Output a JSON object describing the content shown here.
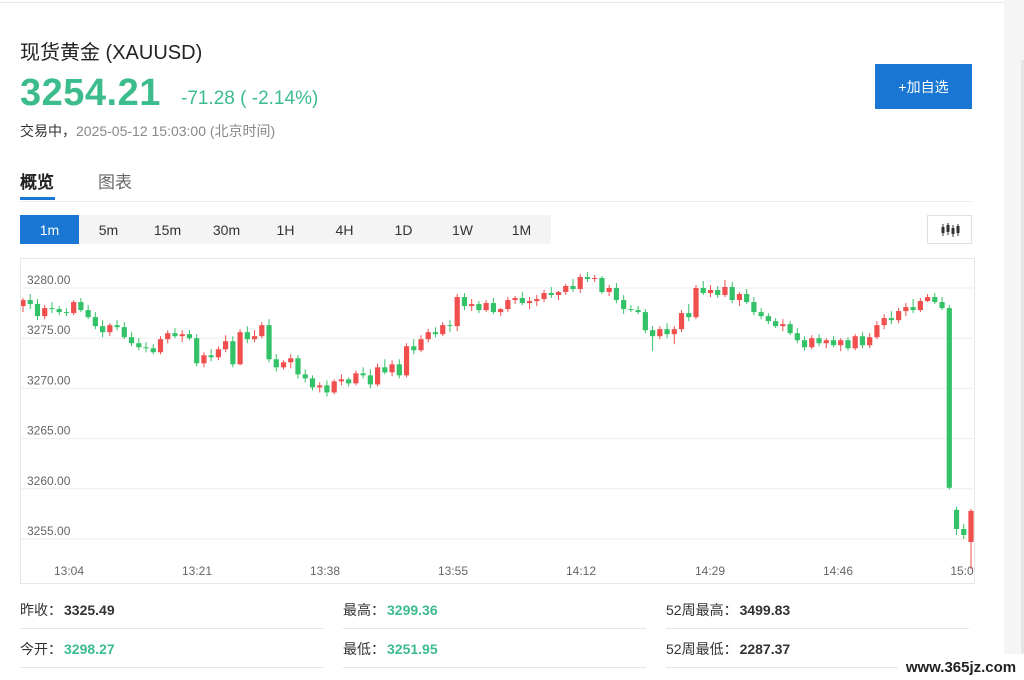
{
  "header": {
    "title": "现货黄金 (XAUUSD)",
    "price": "3254.21",
    "change": "-71.28 ( -2.14%)",
    "status_label": "交易中，",
    "timestamp": "2025-05-12 15:03:00 (北京时间)",
    "add_button": "+加自选"
  },
  "tabs": [
    {
      "label": "概览",
      "active": true
    },
    {
      "label": "图表",
      "active": false
    }
  ],
  "periods": [
    "1m",
    "5m",
    "15m",
    "30m",
    "1H",
    "4H",
    "1D",
    "1W",
    "1M"
  ],
  "active_period": "1m",
  "chart_type_button": "candlestick-icon",
  "colors": {
    "up": "#f14e4e",
    "down": "#33c267",
    "accent": "#1976d2",
    "price": "#3cbc8d"
  },
  "chart_data": {
    "type": "candlestick",
    "y_ticks": [
      "3280.00",
      "3275.00",
      "3270.00",
      "3265.00",
      "3260.00",
      "3255.00"
    ],
    "ylim": [
      3253,
      3282
    ],
    "x_ticks": [
      "13:04",
      "13:21",
      "13:38",
      "13:55",
      "14:12",
      "14:29",
      "14:46",
      "15:0"
    ],
    "grid": true,
    "candles": [
      [
        3278.2,
        3279.0,
        3277.6,
        3278.8
      ],
      [
        3278.8,
        3279.4,
        3277.9,
        3278.4
      ],
      [
        3278.4,
        3278.9,
        3276.8,
        3277.2
      ],
      [
        3277.2,
        3278.3,
        3276.9,
        3278.0
      ],
      [
        3278.0,
        3278.6,
        3277.5,
        3277.9
      ],
      [
        3277.9,
        3278.2,
        3277.3,
        3277.6
      ],
      [
        3277.6,
        3278.0,
        3277.2,
        3277.5
      ],
      [
        3277.5,
        3278.8,
        3277.3,
        3278.6
      ],
      [
        3278.6,
        3279.0,
        3277.6,
        3277.8
      ],
      [
        3277.8,
        3278.3,
        3276.9,
        3277.1
      ],
      [
        3277.1,
        3277.6,
        3275.9,
        3276.2
      ],
      [
        3276.2,
        3276.8,
        3275.1,
        3275.6
      ],
      [
        3275.6,
        3276.5,
        3275.2,
        3276.3
      ],
      [
        3276.3,
        3276.8,
        3275.8,
        3276.1
      ],
      [
        3276.1,
        3276.6,
        3274.9,
        3275.1
      ],
      [
        3275.1,
        3275.6,
        3274.2,
        3274.5
      ],
      [
        3274.5,
        3275.0,
        3273.8,
        3274.1
      ],
      [
        3274.1,
        3274.6,
        3273.6,
        3274.0
      ],
      [
        3274.0,
        3274.4,
        3273.4,
        3273.6
      ],
      [
        3273.6,
        3275.2,
        3273.4,
        3274.9
      ],
      [
        3274.9,
        3275.8,
        3274.5,
        3275.5
      ],
      [
        3275.5,
        3276.0,
        3275.0,
        3275.2
      ],
      [
        3275.2,
        3275.8,
        3274.6,
        3275.4
      ],
      [
        3275.4,
        3275.8,
        3274.8,
        3275.0
      ],
      [
        3275.0,
        3275.4,
        3272.2,
        3272.5
      ],
      [
        3272.5,
        3273.6,
        3272.1,
        3273.3
      ],
      [
        3273.3,
        3273.9,
        3272.7,
        3273.1
      ],
      [
        3273.1,
        3274.2,
        3272.8,
        3273.9
      ],
      [
        3273.9,
        3275.3,
        3273.6,
        3274.7
      ],
      [
        3274.7,
        3275.2,
        3272.1,
        3272.4
      ],
      [
        3272.4,
        3275.9,
        3272.3,
        3275.6
      ],
      [
        3275.6,
        3276.2,
        3274.5,
        3274.9
      ],
      [
        3274.9,
        3275.8,
        3274.6,
        3275.2
      ],
      [
        3275.2,
        3276.6,
        3275.0,
        3276.3
      ],
      [
        3276.3,
        3276.9,
        3272.6,
        3272.9
      ],
      [
        3272.9,
        3273.4,
        3271.7,
        3272.1
      ],
      [
        3272.1,
        3272.8,
        3271.9,
        3272.6
      ],
      [
        3272.6,
        3273.4,
        3272.0,
        3273.0
      ],
      [
        3273.0,
        3273.3,
        3271.0,
        3271.4
      ],
      [
        3271.4,
        3271.9,
        3270.6,
        3271.0
      ],
      [
        3271.0,
        3271.3,
        3269.8,
        3270.1
      ],
      [
        3270.1,
        3270.6,
        3269.6,
        3270.3
      ],
      [
        3270.3,
        3270.8,
        3269.2,
        3269.6
      ],
      [
        3269.6,
        3270.9,
        3269.4,
        3270.7
      ],
      [
        3270.7,
        3271.4,
        3270.3,
        3270.9
      ],
      [
        3270.9,
        3271.1,
        3270.2,
        3270.5
      ],
      [
        3270.5,
        3271.8,
        3270.3,
        3271.5
      ],
      [
        3271.5,
        3272.1,
        3271.0,
        3271.3
      ],
      [
        3271.3,
        3271.9,
        3270.0,
        3270.4
      ],
      [
        3270.4,
        3272.5,
        3270.2,
        3272.1
      ],
      [
        3272.1,
        3272.9,
        3271.4,
        3271.6
      ],
      [
        3271.6,
        3272.8,
        3271.2,
        3272.4
      ],
      [
        3272.4,
        3272.9,
        3271.0,
        3271.3
      ],
      [
        3271.3,
        3274.5,
        3271.1,
        3274.2
      ],
      [
        3274.2,
        3274.9,
        3273.4,
        3273.8
      ],
      [
        3273.8,
        3275.3,
        3273.6,
        3274.9
      ],
      [
        3274.9,
        3275.9,
        3274.6,
        3275.6
      ],
      [
        3275.6,
        3276.1,
        3275.1,
        3275.4
      ],
      [
        3275.4,
        3276.6,
        3275.2,
        3276.3
      ],
      [
        3276.3,
        3276.8,
        3275.6,
        3276.2
      ],
      [
        3276.2,
        3279.4,
        3275.7,
        3279.1
      ],
      [
        3279.1,
        3279.5,
        3277.8,
        3278.2
      ],
      [
        3278.2,
        3278.9,
        3277.7,
        3278.4
      ],
      [
        3278.4,
        3278.7,
        3277.5,
        3277.8
      ],
      [
        3277.8,
        3278.8,
        3277.6,
        3278.5
      ],
      [
        3278.5,
        3279.0,
        3277.4,
        3277.6
      ],
      [
        3277.6,
        3278.0,
        3277.2,
        3277.9
      ],
      [
        3277.9,
        3279.1,
        3277.6,
        3278.8
      ],
      [
        3278.8,
        3279.2,
        3278.4,
        3279.0
      ],
      [
        3279.0,
        3279.6,
        3278.3,
        3278.5
      ],
      [
        3278.5,
        3279.1,
        3277.9,
        3278.7
      ],
      [
        3278.7,
        3279.3,
        3278.2,
        3278.9
      ],
      [
        3278.9,
        3279.8,
        3278.6,
        3279.5
      ],
      [
        3279.5,
        3280.1,
        3279.0,
        3279.3
      ],
      [
        3279.3,
        3279.7,
        3278.8,
        3279.6
      ],
      [
        3279.6,
        3280.4,
        3279.3,
        3280.2
      ],
      [
        3280.2,
        3280.9,
        3279.6,
        3279.9
      ],
      [
        3279.9,
        3281.4,
        3279.5,
        3281.1
      ],
      [
        3281.1,
        3281.6,
        3280.6,
        3280.9
      ],
      [
        3280.9,
        3281.3,
        3280.6,
        3281.0
      ],
      [
        3281.0,
        3281.2,
        3279.4,
        3279.6
      ],
      [
        3279.6,
        3280.3,
        3279.2,
        3280.0
      ],
      [
        3280.0,
        3280.5,
        3278.5,
        3278.8
      ],
      [
        3278.8,
        3279.3,
        3277.4,
        3277.9
      ],
      [
        3277.9,
        3278.3,
        3277.6,
        3277.8
      ],
      [
        3277.8,
        3278.2,
        3277.4,
        3277.6
      ],
      [
        3277.6,
        3277.9,
        3275.5,
        3275.8
      ],
      [
        3275.8,
        3276.2,
        3273.7,
        3275.2
      ],
      [
        3275.2,
        3276.2,
        3274.9,
        3275.9
      ],
      [
        3275.9,
        3276.5,
        3275.0,
        3275.4
      ],
      [
        3275.4,
        3276.2,
        3274.4,
        3275.9
      ],
      [
        3275.9,
        3277.8,
        3275.6,
        3277.5
      ],
      [
        3277.5,
        3278.4,
        3276.7,
        3277.1
      ],
      [
        3277.1,
        3280.3,
        3276.9,
        3280.0
      ],
      [
        3280.0,
        3280.7,
        3279.3,
        3279.5
      ],
      [
        3279.5,
        3280.3,
        3279.1,
        3279.8
      ],
      [
        3279.8,
        3280.2,
        3279.0,
        3279.3
      ],
      [
        3279.3,
        3280.8,
        3279.1,
        3280.1
      ],
      [
        3280.1,
        3280.6,
        3278.5,
        3278.8
      ],
      [
        3278.8,
        3279.6,
        3278.2,
        3279.4
      ],
      [
        3279.4,
        3279.9,
        3278.4,
        3278.6
      ],
      [
        3278.6,
        3279.1,
        3277.3,
        3277.6
      ],
      [
        3277.6,
        3278.0,
        3276.9,
        3277.2
      ],
      [
        3277.2,
        3277.5,
        3276.4,
        3276.7
      ],
      [
        3276.7,
        3277.0,
        3276.0,
        3276.2
      ],
      [
        3276.2,
        3276.9,
        3275.7,
        3276.4
      ],
      [
        3276.4,
        3276.7,
        3275.3,
        3275.5
      ],
      [
        3275.5,
        3276.0,
        3274.5,
        3274.8
      ],
      [
        3274.8,
        3275.2,
        3273.8,
        3274.1
      ],
      [
        3274.1,
        3275.3,
        3273.9,
        3275.0
      ],
      [
        3275.0,
        3275.4,
        3274.2,
        3274.5
      ],
      [
        3274.5,
        3275.0,
        3274.0,
        3274.8
      ],
      [
        3274.8,
        3275.2,
        3274.1,
        3274.3
      ],
      [
        3274.3,
        3275.0,
        3273.7,
        3274.8
      ],
      [
        3274.8,
        3275.1,
        3273.8,
        3274.0
      ],
      [
        3274.0,
        3275.4,
        3273.8,
        3275.2
      ],
      [
        3275.2,
        3275.6,
        3274.0,
        3274.3
      ],
      [
        3274.3,
        3275.5,
        3274.0,
        3275.1
      ],
      [
        3275.1,
        3276.7,
        3274.9,
        3276.3
      ],
      [
        3276.3,
        3277.4,
        3275.9,
        3277.0
      ],
      [
        3277.0,
        3277.7,
        3276.4,
        3276.8
      ],
      [
        3276.8,
        3278.0,
        3276.5,
        3277.7
      ],
      [
        3277.7,
        3278.5,
        3277.2,
        3278.1
      ],
      [
        3278.1,
        3278.9,
        3277.5,
        3277.8
      ],
      [
        3277.8,
        3279.0,
        3277.6,
        3278.7
      ],
      [
        3278.7,
        3279.4,
        3278.6,
        3279.1
      ],
      [
        3279.1,
        3279.5,
        3278.4,
        3278.6
      ],
      [
        3278.6,
        3279.1,
        3277.8,
        3278.0
      ],
      [
        3278.0,
        3278.3,
        3259.9,
        3260.1
      ],
      [
        3257.9,
        3258.2,
        3255.4,
        3256.0
      ],
      [
        3256.0,
        3256.5,
        3255.0,
        3255.4
      ],
      [
        3254.7,
        3258.0,
        3252.0,
        3257.8
      ]
    ]
  },
  "stats": [
    {
      "label": "昨收：",
      "value": "3325.49",
      "green": false
    },
    {
      "label": "最高：",
      "value": "3299.36",
      "green": true
    },
    {
      "label": "52周最高：",
      "value": "3499.83",
      "green": false
    },
    {
      "label": "今开：",
      "value": "3298.27",
      "green": true
    },
    {
      "label": "最低：",
      "value": "3251.95",
      "green": true
    },
    {
      "label": "52周最低：",
      "value": "2287.37",
      "green": false
    }
  ],
  "watermark": "www.365jz.com"
}
